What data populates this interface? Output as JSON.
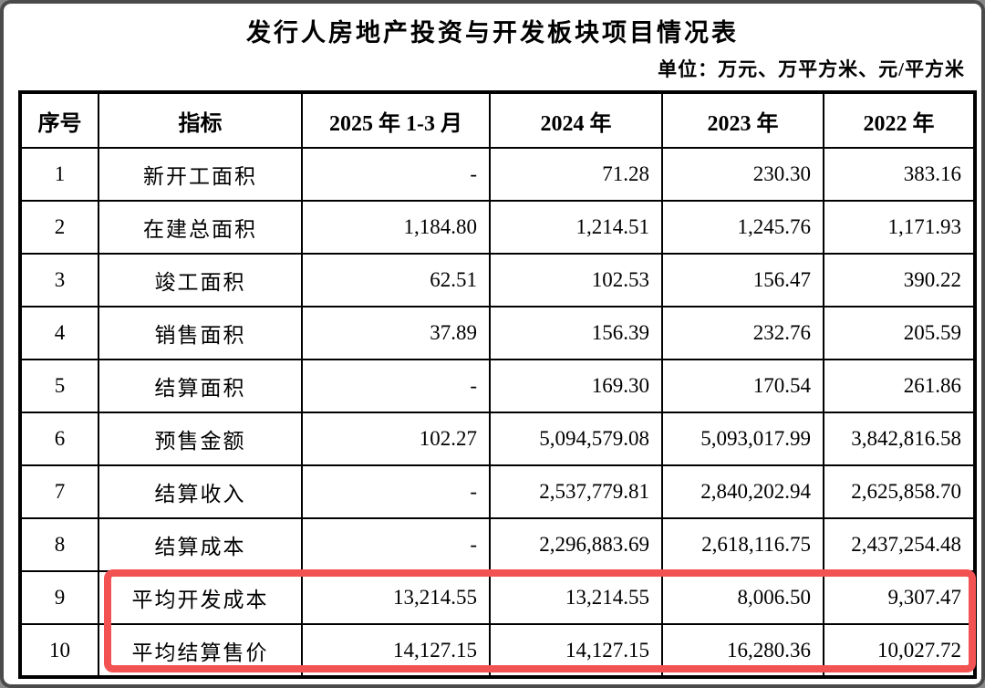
{
  "page": {
    "title": "发行人房地产投资与开发板块项目情况表",
    "unit_note": "单位：万元、万平方米、元/平方米"
  },
  "table": {
    "columns": [
      "序号",
      "指标",
      "2025 年 1-3 月",
      "2024 年",
      "2023 年",
      "2022 年"
    ],
    "rows": [
      {
        "no": "1",
        "indicator": "新开工面积",
        "values": [
          "-",
          "71.28",
          "230.30",
          "383.16"
        ]
      },
      {
        "no": "2",
        "indicator": "在建总面积",
        "values": [
          "1,184.80",
          "1,214.51",
          "1,245.76",
          "1,171.93"
        ]
      },
      {
        "no": "3",
        "indicator": "竣工面积",
        "values": [
          "62.51",
          "102.53",
          "156.47",
          "390.22"
        ]
      },
      {
        "no": "4",
        "indicator": "销售面积",
        "values": [
          "37.89",
          "156.39",
          "232.76",
          "205.59"
        ]
      },
      {
        "no": "5",
        "indicator": "结算面积",
        "values": [
          "-",
          "169.30",
          "170.54",
          "261.86"
        ]
      },
      {
        "no": "6",
        "indicator": "预售金额",
        "values": [
          "102.27",
          "5,094,579.08",
          "5,093,017.99",
          "3,842,816.58"
        ]
      },
      {
        "no": "7",
        "indicator": "结算收入",
        "values": [
          "-",
          "2,537,779.81",
          "2,840,202.94",
          "2,625,858.70"
        ]
      },
      {
        "no": "8",
        "indicator": "结算成本",
        "values": [
          "-",
          "2,296,883.69",
          "2,618,116.75",
          "2,437,254.48"
        ]
      },
      {
        "no": "9",
        "indicator": "平均开发成本",
        "values": [
          "13,214.55",
          "13,214.55",
          "8,006.50",
          "9,307.47"
        ]
      },
      {
        "no": "10",
        "indicator": "平均结算售价",
        "values": [
          "14,127.15",
          "14,127.15",
          "16,280.36",
          "10,027.72"
        ]
      }
    ],
    "highlight": {
      "rows": [
        "9",
        "10"
      ],
      "color": "#f25352"
    }
  }
}
